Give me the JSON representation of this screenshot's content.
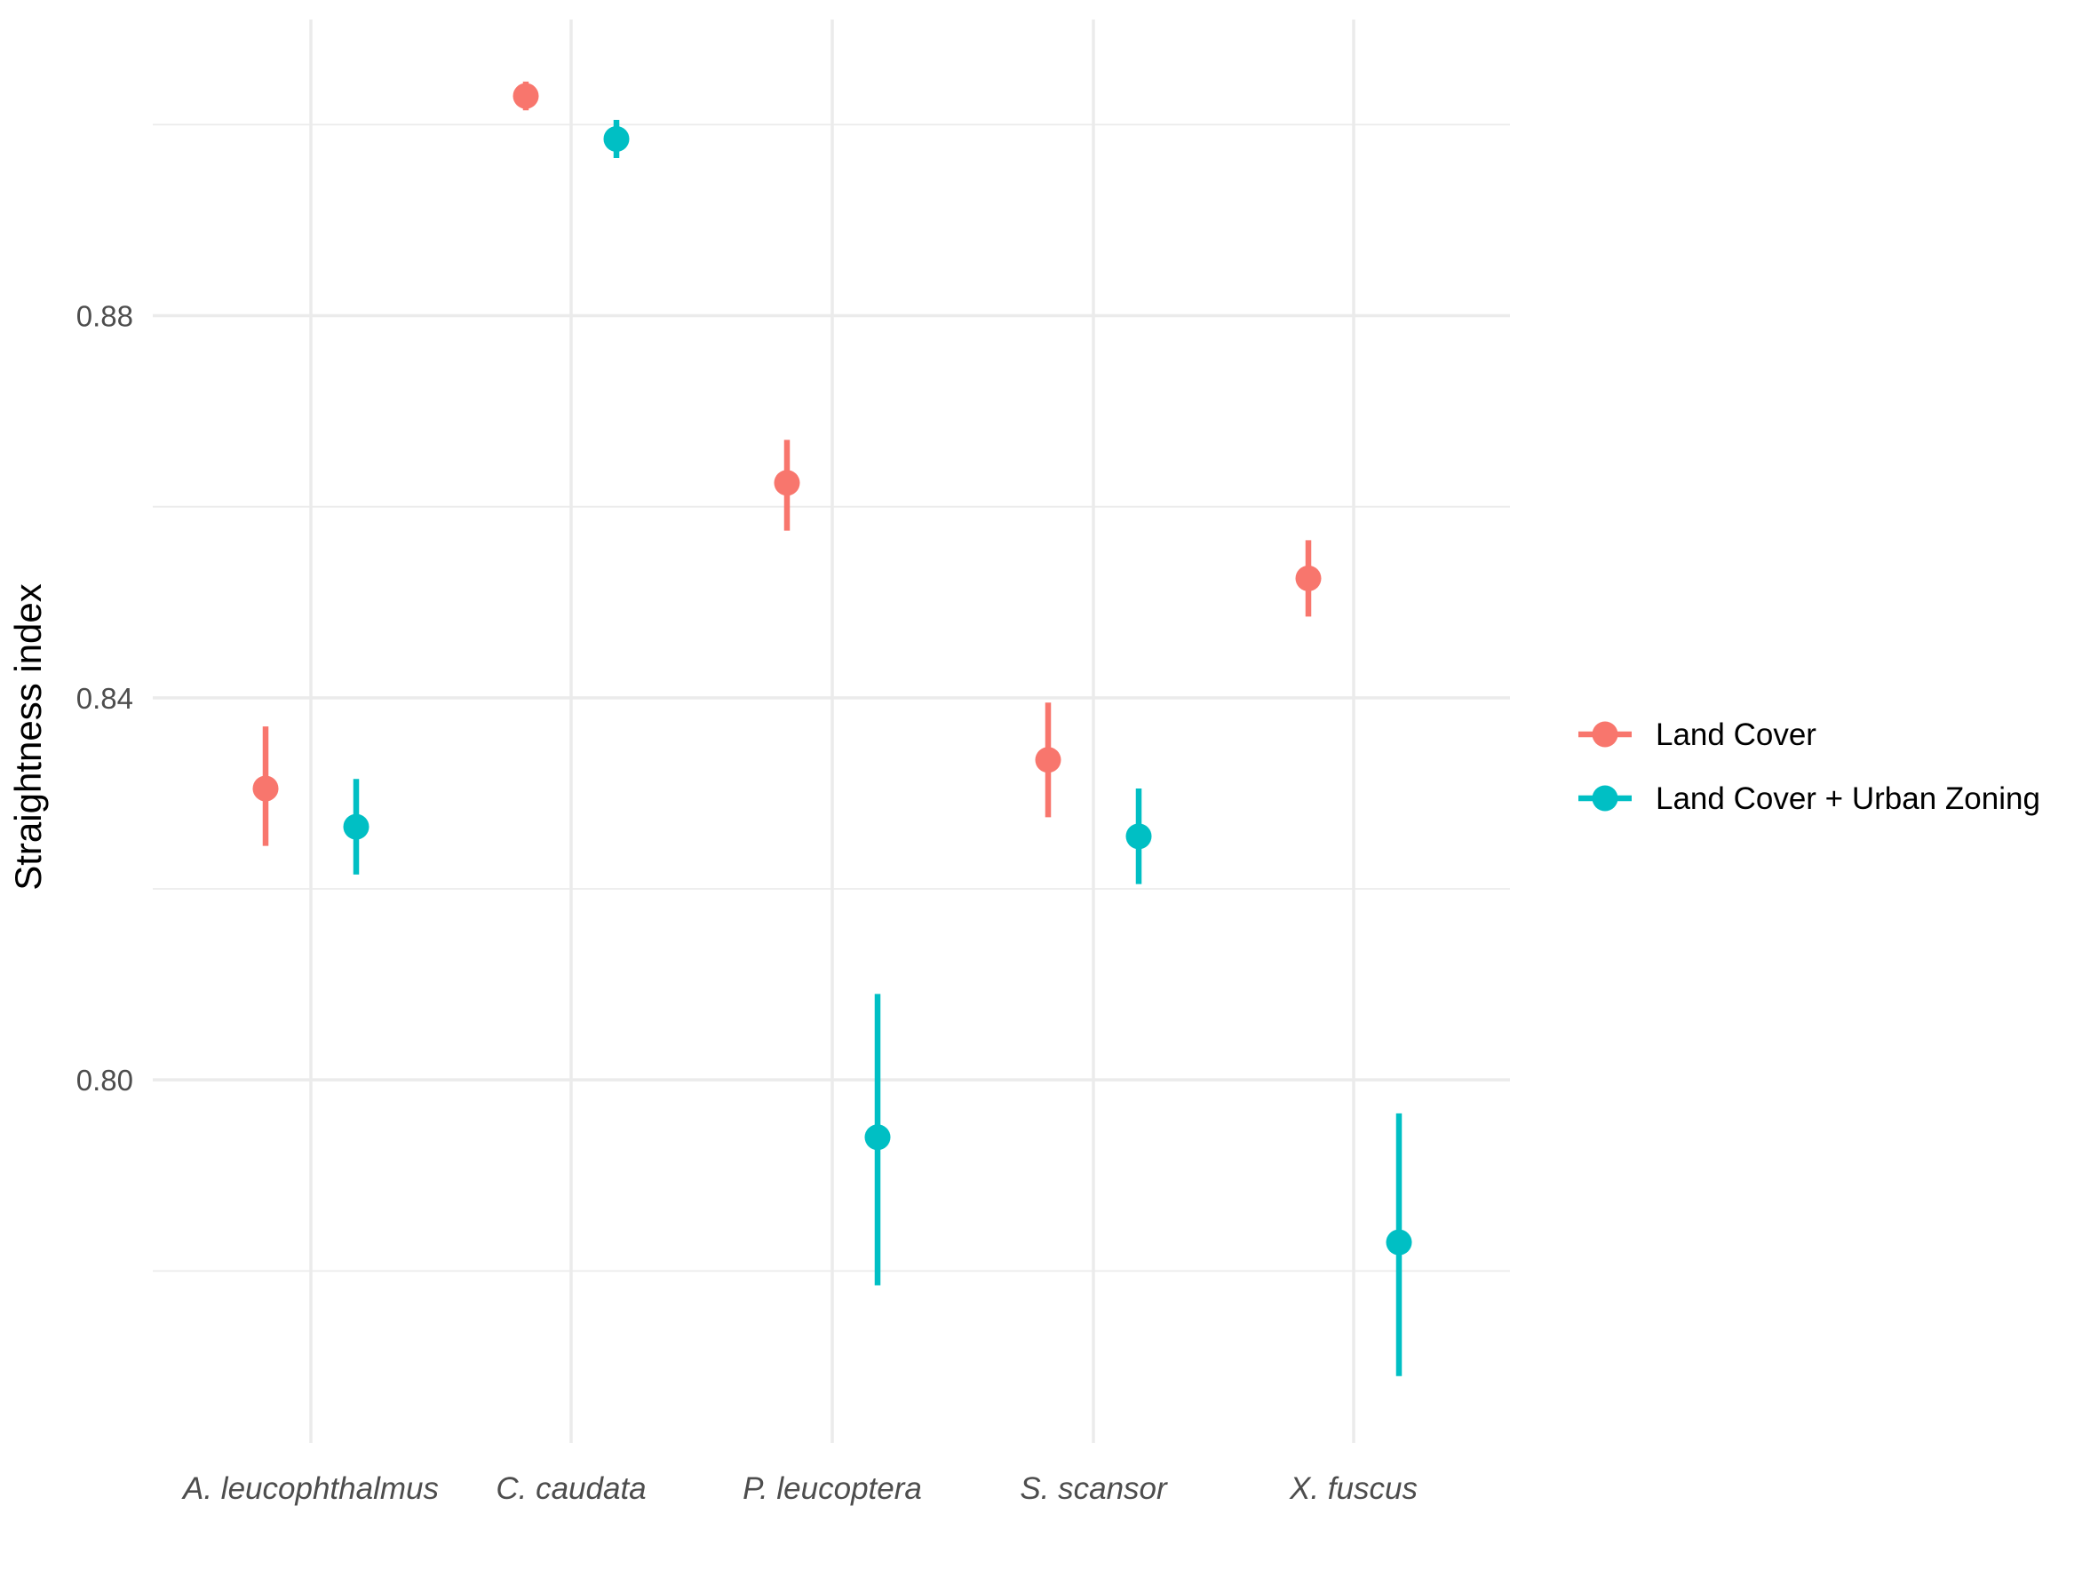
{
  "chart_data": {
    "type": "scatter",
    "subtype": "point-range",
    "title": "",
    "xlabel": "",
    "ylabel": "Straightness index",
    "ylim": [
      0.762,
      0.911
    ],
    "yticks": [
      0.8,
      0.84,
      0.88
    ],
    "ytick_labels": [
      "0.80",
      "0.84",
      "0.88"
    ],
    "grid": true,
    "legend_position": "right",
    "categories": [
      "A. leucophthalmus",
      "C. caudata",
      "P. leucoptera",
      "S. scansor",
      "X. fuscus"
    ],
    "series": [
      {
        "name": "Land Cover",
        "color": "#F8766D",
        "values": [
          0.8305,
          0.903,
          0.8625,
          0.8335,
          0.8525
        ],
        "lower": [
          0.8245,
          0.9015,
          0.8575,
          0.8275,
          0.8485
        ],
        "upper": [
          0.837,
          0.9045,
          0.867,
          0.8395,
          0.8565
        ]
      },
      {
        "name": "Land Cover + Urban Zoning",
        "color": "#00BFC4",
        "values": [
          0.8265,
          0.8985,
          0.794,
          0.8255,
          0.783
        ],
        "lower": [
          0.8215,
          0.8965,
          0.7785,
          0.8205,
          0.769
        ],
        "upper": [
          0.8315,
          0.9005,
          0.809,
          0.8305,
          0.7965
        ]
      }
    ]
  }
}
